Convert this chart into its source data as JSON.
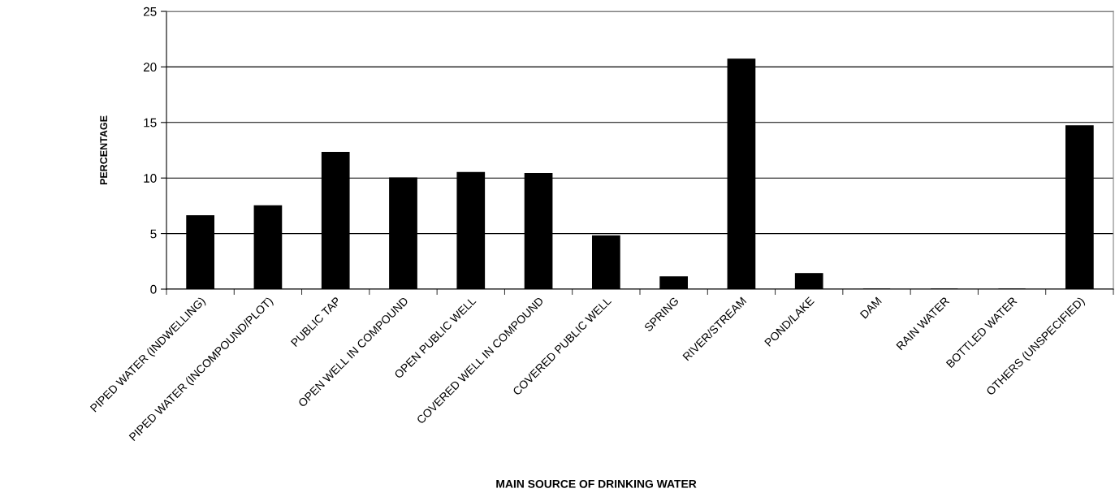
{
  "chart_data": {
    "type": "bar",
    "xlabel": "MAIN SOURCE OF DRINKING WATER",
    "ylabel": "PERCENTAGE",
    "categories": [
      "PIPED WATER (INDWELLING)",
      "PIPED WATER (INCOMPOUND/PLOT)",
      "PUBLIC TAP",
      "OPEN WELL IN COMPOUND",
      "OPEN PUBLIC WELL",
      "COVERED WELL IN COMPOUND",
      "COVERED PUBLIC WELL",
      "SPRING",
      "RIVER/STREAM",
      "POND/LAKE",
      "DAM",
      "RAIN WATER",
      "BOTTLED WATER",
      "OTHERS (UNSPECIFIED)"
    ],
    "values": [
      6.6,
      7.5,
      12.3,
      10.0,
      10.5,
      10.4,
      4.8,
      1.1,
      20.7,
      1.4,
      0,
      0,
      0,
      14.7
    ],
    "color": "#000000",
    "ylim": [
      0,
      25
    ],
    "yticks": [
      0,
      5,
      10,
      15,
      20,
      25
    ],
    "grid": "y",
    "legend": false
  }
}
